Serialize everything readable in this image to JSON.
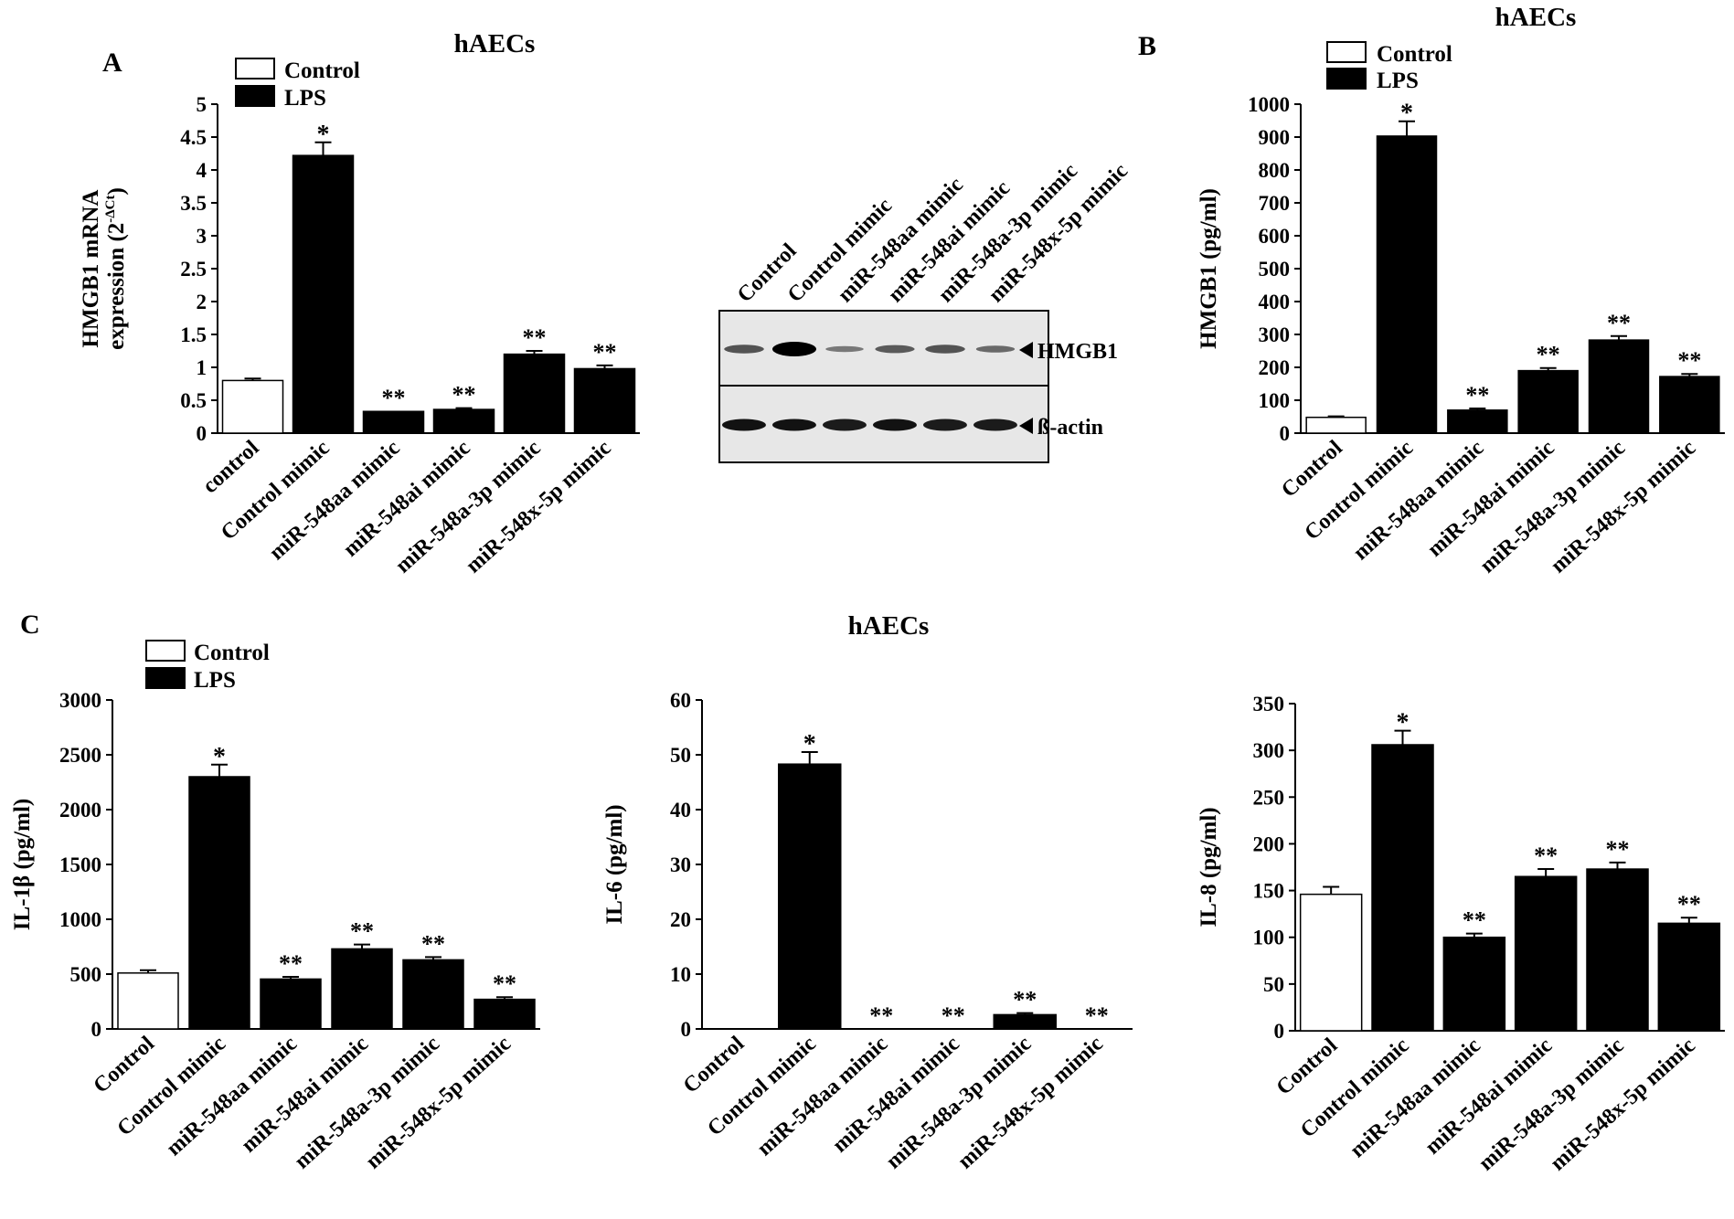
{
  "figure": {
    "panel_letters": [
      "A",
      "B",
      "C"
    ],
    "cell_line": "hAECs"
  },
  "legend": {
    "control": "Control",
    "lps": "LPS"
  },
  "blot": {
    "lanes": [
      "Control",
      "Control mimic",
      "miR-548aa mimic",
      "miR-548ai mimic",
      "miR-548a-3p mimic",
      "miR-548x-5p mimic"
    ],
    "band_labels": [
      "HMGB1",
      "ß-actin"
    ],
    "hmgb1_intensity": [
      0.45,
      1.0,
      0.2,
      0.4,
      0.45,
      0.3
    ],
    "actin_intensity": [
      0.9,
      0.9,
      0.85,
      0.9,
      0.85,
      0.85
    ]
  },
  "chart_data": [
    {
      "id": "A",
      "type": "bar",
      "title": "hAECs",
      "ylabel": "HMGB1 mRNA expression (2^-ΔCt)",
      "ylabel_lines": [
        "HMGB1 mRNA",
        "expression (2",
        "-ΔCt",
        ")"
      ],
      "ylim": [
        0,
        5
      ],
      "yticks": [
        "0",
        "0.5",
        "1",
        "1.5",
        "2",
        "2.5",
        "3",
        "3.5",
        "4",
        "4.5",
        "5"
      ],
      "categories": [
        "control",
        "Control mimic",
        "miR-548aa mimic",
        "miR-548ai mimic",
        "miR-548a-3p mimic",
        "miR-548x-5p mimic"
      ],
      "values": [
        0.8,
        4.22,
        0.33,
        0.36,
        1.2,
        0.98
      ],
      "errors": [
        0.03,
        0.2,
        0.0,
        0.02,
        0.05,
        0.05
      ],
      "groups": [
        "Control",
        "LPS",
        "LPS",
        "LPS",
        "LPS",
        "LPS"
      ],
      "annotations": [
        "",
        "*",
        "**",
        "**",
        "**",
        "**"
      ]
    },
    {
      "id": "B",
      "type": "bar",
      "title": "hAECs",
      "ylabel": "HMGB1 (pg/ml)",
      "ylim": [
        0,
        1000
      ],
      "yticks": [
        "0",
        "100",
        "200",
        "300",
        "400",
        "500",
        "600",
        "700",
        "800",
        "900",
        "1000"
      ],
      "categories": [
        "Control",
        "Control mimic",
        "miR-548aa mimic",
        "miR-548ai mimic",
        "miR-548a-3p mimic",
        "miR-548x-5p mimic"
      ],
      "values": [
        48,
        903,
        70,
        190,
        283,
        172
      ],
      "errors": [
        3,
        45,
        5,
        8,
        12,
        8
      ],
      "groups": [
        "Control",
        "LPS",
        "LPS",
        "LPS",
        "LPS",
        "LPS"
      ],
      "annotations": [
        "",
        "*",
        "**",
        "**",
        "**",
        "**"
      ]
    },
    {
      "id": "C1",
      "type": "bar",
      "ylabel": "IL-1β (pg/ml)",
      "ylim": [
        0,
        3000
      ],
      "yticks": [
        "0",
        "500",
        "1000",
        "1500",
        "2000",
        "2500",
        "3000"
      ],
      "categories": [
        "Control",
        "Control mimic",
        "miR-548aa mimic",
        "miR-548ai mimic",
        "miR-548a-3p mimic",
        "miR-548x-5p mimic"
      ],
      "values": [
        510,
        2300,
        455,
        730,
        630,
        270
      ],
      "errors": [
        25,
        110,
        20,
        40,
        25,
        20
      ],
      "groups": [
        "Control",
        "LPS",
        "LPS",
        "LPS",
        "LPS",
        "LPS"
      ],
      "annotations": [
        "",
        "*",
        "**",
        "**",
        "**",
        "**"
      ]
    },
    {
      "id": "C2",
      "type": "bar",
      "title": "hAECs",
      "ylabel": "IL-6 (pg/ml)",
      "ylim": [
        0,
        60
      ],
      "yticks": [
        "0",
        "10",
        "20",
        "30",
        "40",
        "50",
        "60"
      ],
      "categories": [
        "Control",
        "Control mimic",
        "miR-548aa mimic",
        "miR-548ai mimic",
        "miR-548a-3p mimic",
        "miR-548x-5p mimic"
      ],
      "values": [
        0,
        48.3,
        0,
        0,
        2.6,
        0
      ],
      "errors": [
        0,
        2.2,
        0,
        0,
        0.3,
        0
      ],
      "groups": [
        "Control",
        "LPS",
        "LPS",
        "LPS",
        "LPS",
        "LPS"
      ],
      "annotations": [
        "",
        "*",
        "**",
        "**",
        "**",
        "**"
      ]
    },
    {
      "id": "C3",
      "type": "bar",
      "ylabel": "IL-8 (pg/ml)",
      "ylim": [
        0,
        350
      ],
      "yticks": [
        "0",
        "50",
        "100",
        "150",
        "200",
        "250",
        "300",
        "350"
      ],
      "categories": [
        "Control",
        "Control mimic",
        "miR-548aa mimic",
        "miR-548ai mimic",
        "miR-548a-3p mimic",
        "miR-548x-5p mimic"
      ],
      "values": [
        146,
        306,
        100,
        165,
        173,
        115
      ],
      "errors": [
        8,
        15,
        4,
        8,
        7,
        6
      ],
      "groups": [
        "Control",
        "LPS",
        "LPS",
        "LPS",
        "LPS",
        "LPS"
      ],
      "annotations": [
        "",
        "*",
        "**",
        "**",
        "**",
        "**"
      ]
    }
  ]
}
